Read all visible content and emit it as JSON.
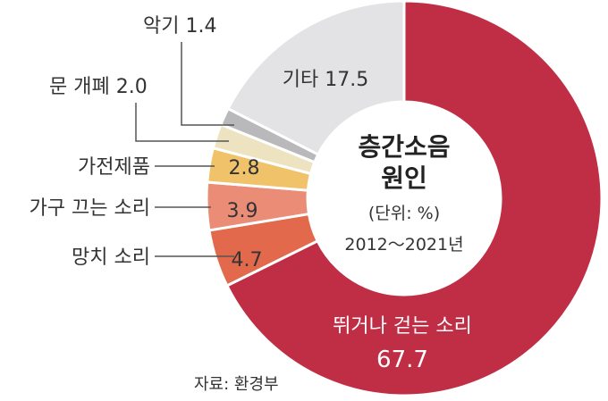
{
  "chart_data": {
    "type": "pie",
    "style": "donut",
    "title": "층간소음 원인",
    "subtitle": "(단위: %)",
    "period": "2012～2021년",
    "source": "자료: 환경부",
    "categories": [
      "뛰거나 걷는 소리",
      "망치 소리",
      "가구 끄는 소리",
      "가전제품",
      "문 개폐",
      "악기",
      "기타"
    ],
    "values": [
      67.7,
      4.7,
      3.9,
      2.8,
      2.0,
      1.4,
      17.5
    ],
    "value_labels": [
      "67.7",
      "4.7",
      "3.9",
      "2.8",
      "2.0",
      "1.4",
      "17.5"
    ],
    "colors": [
      "#bf2e45",
      "#e3694d",
      "#ea8c76",
      "#f0c36a",
      "#ede3c0",
      "#b9b9bc",
      "#e3e3e5"
    ]
  }
}
